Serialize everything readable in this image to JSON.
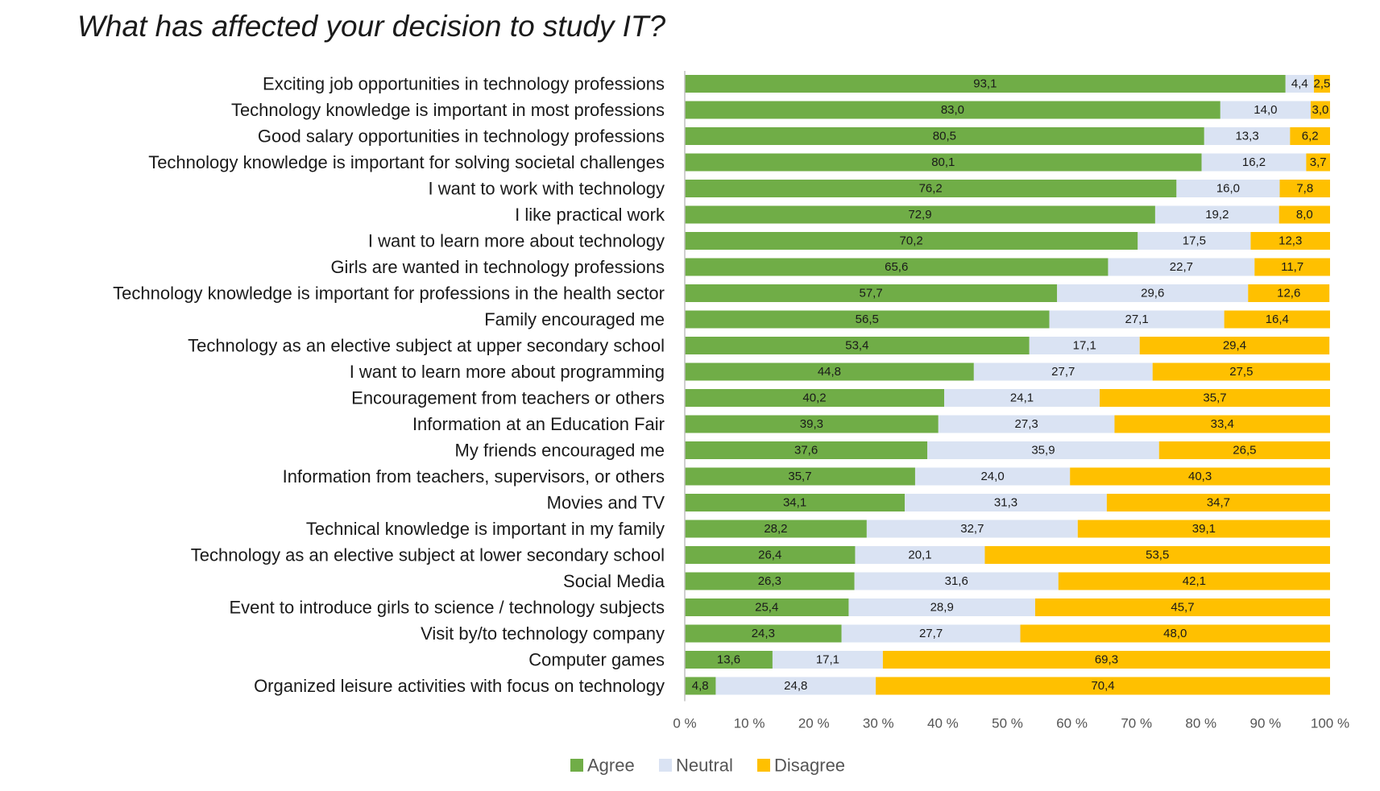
{
  "chart_data": {
    "type": "bar",
    "orientation": "horizontal",
    "stacked": true,
    "normalized_percent": true,
    "title": "What has affected your decision to study IT?",
    "xlim": [
      0,
      100
    ],
    "x_ticks": [
      "0 %",
      "10 %",
      "20 %",
      "30 %",
      "40 %",
      "50 %",
      "60 %",
      "70 %",
      "80 %",
      "90 %",
      "100 %"
    ],
    "legend_position": "bottom",
    "grid": false,
    "categories": [
      "Exciting job opportunities in  technology professions",
      "Technology knowledge is important in most professions",
      "Good salary opportunities in technology professions",
      "Technology knowledge is important for solving societal challenges",
      "I want to work with technology",
      "I like practical work",
      "I want to learn more about technology",
      "Girls are wanted in technology professions",
      "Technology knowledge is important for professions in the health sector",
      "Family encouraged me",
      "Technology as an elective subject at upper secondary school",
      "I want to learn more about programming",
      "Encouragement from teachers or others",
      "Information at an Education Fair",
      "My friends encouraged me",
      "Information from teachers, supervisors, or others",
      "Movies and TV",
      "Technical knowledge is important in my family",
      "Technology as an elective subject at lower secondary school",
      "Social Media",
      "Event to introduce girls to science / technology subjects",
      "Visit by/to technology company",
      "Computer games",
      "Organized leisure activities with focus on technology"
    ],
    "series": [
      {
        "name": "Agree",
        "color": "#70ad47",
        "values": [
          93.1,
          83.0,
          80.5,
          80.1,
          76.2,
          72.9,
          70.2,
          65.6,
          57.7,
          56.5,
          53.4,
          44.8,
          40.2,
          39.3,
          37.6,
          35.7,
          34.1,
          28.2,
          26.4,
          26.3,
          25.4,
          24.3,
          13.6,
          4.8
        ],
        "labels": [
          "93,1",
          "83,0",
          "80,5",
          "80,1",
          "76,2",
          "72,9",
          "70,2",
          "65,6",
          "57,7",
          "56,5",
          "53,4",
          "44,8",
          "40,2",
          "39,3",
          "37,6",
          "35,7",
          "34,1",
          "28,2",
          "26,4",
          "26,3",
          "25,4",
          "24,3",
          "13,6",
          "4,8"
        ]
      },
      {
        "name": "Neutral",
        "color": "#dae3f3",
        "values": [
          4.4,
          14.0,
          13.3,
          16.2,
          16.0,
          19.2,
          17.5,
          22.7,
          29.6,
          27.1,
          17.1,
          27.7,
          24.1,
          27.3,
          35.9,
          24.0,
          31.3,
          32.7,
          20.1,
          31.6,
          28.9,
          27.7,
          17.1,
          24.8
        ],
        "labels": [
          "4,4",
          "14,0",
          "13,3",
          "16,2",
          "16,0",
          "19,2",
          "17,5",
          "22,7",
          "29,6",
          "27,1",
          "17,1",
          "27,7",
          "24,1",
          "27,3",
          "35,9",
          "24,0",
          "31,3",
          "32,7",
          "20,1",
          "31,6",
          "28,9",
          "27,7",
          "17,1",
          "24,8"
        ]
      },
      {
        "name": "Disagree",
        "color": "#ffc000",
        "values": [
          2.5,
          3.0,
          6.2,
          3.7,
          7.8,
          8.0,
          12.3,
          11.7,
          12.6,
          16.4,
          29.4,
          27.5,
          35.7,
          33.4,
          26.5,
          40.3,
          34.7,
          39.1,
          53.5,
          42.1,
          45.7,
          48.0,
          69.3,
          70.4
        ],
        "labels": [
          "2,5",
          "3,0",
          "6,2",
          "3,7",
          "7,8",
          "8,0",
          "12,3",
          "11,7",
          "12,6",
          "16,4",
          "29,4",
          "27,5",
          "35,7",
          "33,4",
          "26,5",
          "40,3",
          "34,7",
          "39,1",
          "53,5",
          "42,1",
          "45,7",
          "48,0",
          "69,3",
          "70,4"
        ]
      }
    ]
  }
}
